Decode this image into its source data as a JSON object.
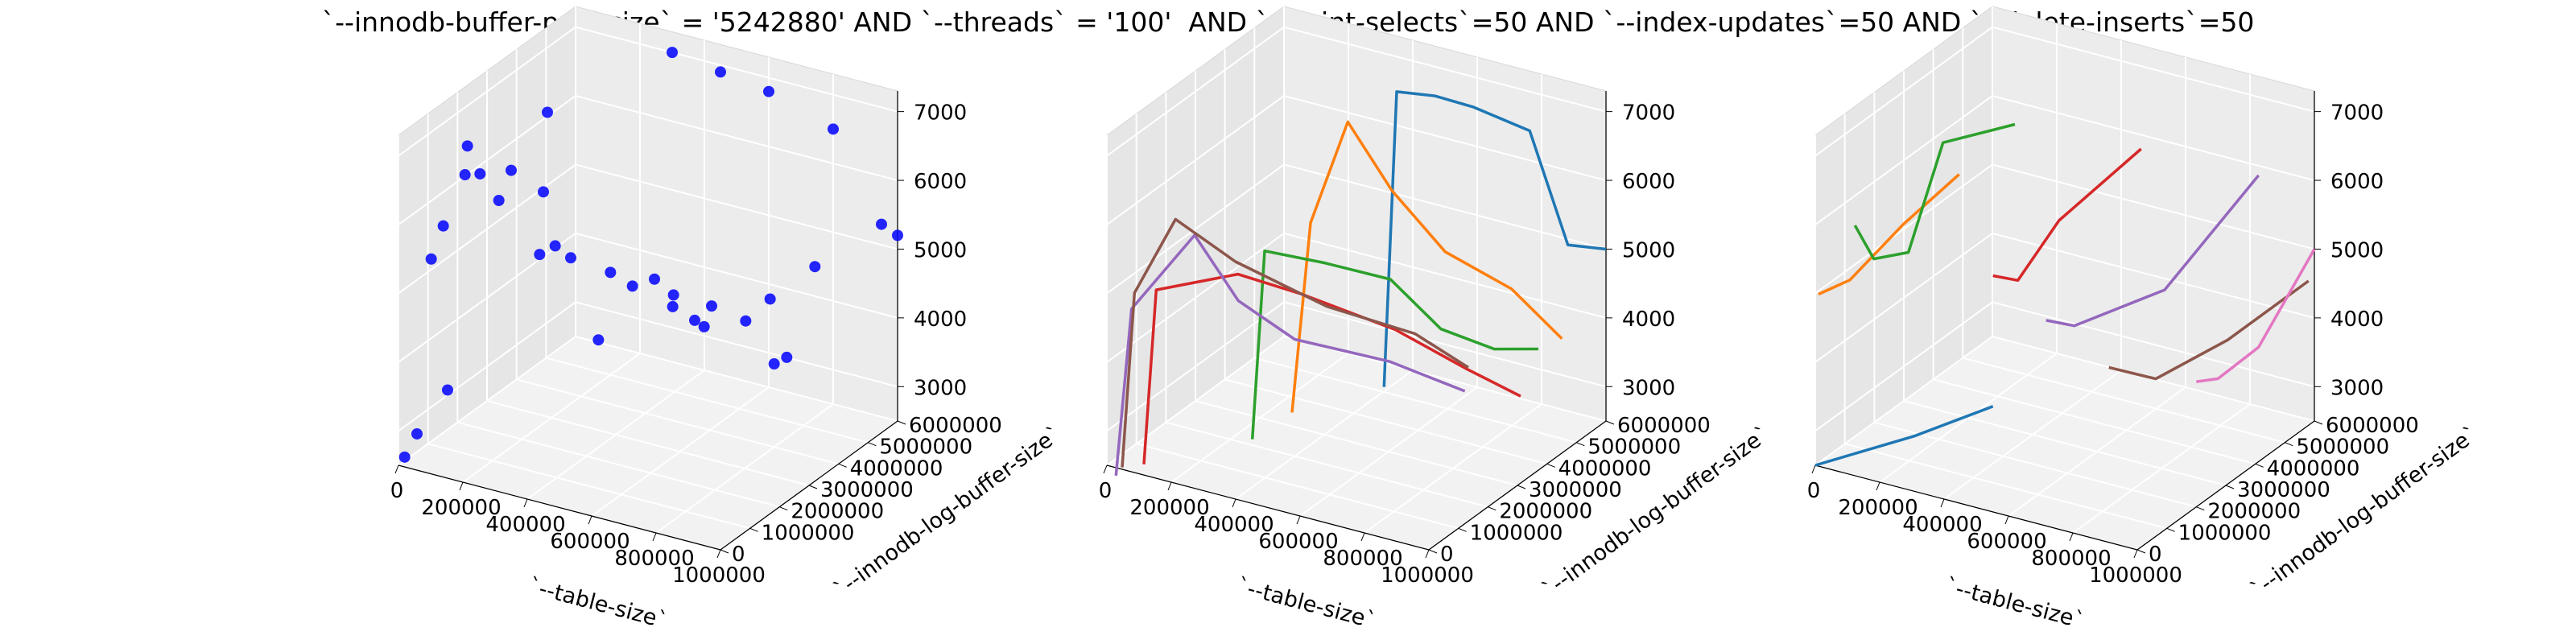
{
  "chart_data": {
    "type": "scatter3d",
    "title": "`--innodb-buffer-pool-size` = '5242880' AND `--threads` = '100'  AND `--point-selects`=50 AND `--index-updates`=50 AND `--delete-inserts`=50",
    "axes": {
      "xlabel": "`--table-size`",
      "ylabel": "`--innodb-log-buffer-size`",
      "zlabel": "",
      "xlim": [
        0,
        1000000
      ],
      "ylim": [
        0,
        6000000
      ],
      "zlim": [
        2500,
        7300
      ],
      "xticks": [
        "0",
        "200000",
        "400000",
        "600000",
        "800000",
        "1000000"
      ],
      "yticks": [
        "0",
        "1000000",
        "2000000",
        "3000000",
        "4000000",
        "5000000",
        "6000000"
      ],
      "zticks": [
        "3000",
        "4000",
        "5000",
        "6000",
        "7000"
      ],
      "grid": true,
      "pane_color": "#ebebeb"
    },
    "panels": [
      {
        "kind": "scatter",
        "color": "#0000ff",
        "points": [
          [
            10000,
            100000,
            2600
          ],
          [
            30000,
            300000,
            2900
          ],
          [
            70000,
            900000,
            3400
          ],
          [
            10000,
            1000000,
            5200
          ],
          [
            20000,
            1300000,
            5600
          ],
          [
            60000,
            1600000,
            6300
          ],
          [
            40000,
            1900000,
            6600
          ],
          [
            70000,
            2000000,
            6200
          ],
          [
            110000,
            2200000,
            5800
          ],
          [
            130000,
            2400000,
            6200
          ],
          [
            200000,
            2600000,
            5000
          ],
          [
            230000,
            2800000,
            5100
          ],
          [
            260000,
            3000000,
            4900
          ],
          [
            160000,
            3300000,
            6800
          ],
          [
            120000,
            3600000,
            5500
          ],
          [
            300000,
            3500000,
            3600
          ],
          [
            310000,
            3800000,
            4500
          ],
          [
            360000,
            4000000,
            4300
          ],
          [
            410000,
            4200000,
            4400
          ],
          [
            460000,
            4300000,
            4200
          ],
          [
            560000,
            4500000,
            4100
          ],
          [
            430000,
            4600000,
            3900
          ],
          [
            480000,
            4800000,
            3700
          ],
          [
            500000,
            4900000,
            3600
          ],
          [
            620000,
            5000000,
            3800
          ],
          [
            690000,
            5200000,
            3200
          ],
          [
            720000,
            5300000,
            3300
          ],
          [
            650000,
            5500000,
            4000
          ],
          [
            780000,
            5600000,
            4600
          ],
          [
            300000,
            6000000,
            7000
          ],
          [
            450000,
            6000000,
            6900
          ],
          [
            600000,
            6000000,
            6800
          ],
          [
            800000,
            6000000,
            6500
          ],
          [
            950000,
            6000000,
            5300
          ],
          [
            1000000,
            6000000,
            5200
          ]
        ]
      },
      {
        "kind": "lines",
        "series": [
          {
            "color": "#1f77b4",
            "points": [
              [
                430000,
                4700000,
                2700
              ],
              [
                460000,
                4800000,
                7000
              ],
              [
                560000,
                5000000,
                7000
              ],
              [
                660000,
                5200000,
                6900
              ],
              [
                800000,
                5600000,
                6600
              ],
              [
                900000,
                5800000,
                5000
              ],
              [
                1000000,
                6000000,
                5000
              ]
            ]
          },
          {
            "color": "#ff7f0e",
            "points": [
              [
                300000,
                3000000,
                2700
              ],
              [
                330000,
                3300000,
                5400
              ],
              [
                400000,
                3800000,
                6800
              ],
              [
                500000,
                4200000,
                5800
              ],
              [
                620000,
                4700000,
                4900
              ],
              [
                780000,
                5200000,
                4400
              ],
              [
                900000,
                5600000,
                3700
              ]
            ]
          },
          {
            "color": "#2ca02c",
            "points": [
              [
                250000,
                2200000,
                2500
              ],
              [
                270000,
                2400000,
                5200
              ],
              [
                400000,
                3000000,
                5000
              ],
              [
                560000,
                3500000,
                4800
              ],
              [
                680000,
                3900000,
                4100
              ],
              [
                800000,
                4400000,
                3800
              ],
              [
                900000,
                4800000,
                3800
              ]
            ]
          },
          {
            "color": "#d62728",
            "points": [
              [
                60000,
                600000,
                2400
              ],
              [
                80000,
                800000,
                4900
              ],
              [
                260000,
                1600000,
                5100
              ],
              [
                400000,
                2200000,
                4800
              ],
              [
                620000,
                3000000,
                4300
              ],
              [
                780000,
                3700000,
                3700
              ],
              [
                900000,
                4200000,
                3300
              ]
            ]
          },
          {
            "color": "#9467bd",
            "points": [
              [
                10000,
                200000,
                2300
              ],
              [
                40000,
                400000,
                4700
              ],
              [
                190000,
                900000,
                5800
              ],
              [
                280000,
                1400000,
                4800
              ],
              [
                400000,
                2000000,
                4200
              ],
              [
                620000,
                2800000,
                3900
              ],
              [
                800000,
                3400000,
                3500
              ]
            ]
          },
          {
            "color": "#8c564b",
            "points": [
              [
                20000,
                300000,
                2400
              ],
              [
                40000,
                500000,
                4900
              ],
              [
                140000,
                800000,
                6000
              ],
              [
                280000,
                1300000,
                5400
              ],
              [
                500000,
                2000000,
                4800
              ],
              [
                700000,
                2800000,
                4400
              ],
              [
                820000,
                3300000,
                3900
              ]
            ]
          }
        ]
      },
      {
        "kind": "lines",
        "series": [
          {
            "color": "#1f77b4",
            "points": [
              [
                0,
                0,
                2500
              ],
              [
                200000,
                1200000,
                2800
              ],
              [
                350000,
                2200000,
                3100
              ]
            ]
          },
          {
            "color": "#ff7f0e",
            "points": [
              [
                10000,
                0,
                5000
              ],
              [
                80000,
                300000,
                5200
              ],
              [
                200000,
                800000,
                6000
              ],
              [
                300000,
                1600000,
                6600
              ]
            ]
          },
          {
            "color": "#2ca02c",
            "points": [
              [
                50000,
                800000,
                5800
              ],
              [
                90000,
                1000000,
                5300
              ],
              [
                170000,
                1300000,
                5400
              ],
              [
                250000,
                1600000,
                7000
              ],
              [
                400000,
                2400000,
                7200
              ]
            ]
          },
          {
            "color": "#d62728",
            "points": [
              [
                350000,
                2200000,
                5000
              ],
              [
                400000,
                2500000,
                4900
              ],
              [
                500000,
                2800000,
                5800
              ],
              [
                700000,
                3400000,
                6900
              ]
            ]
          },
          {
            "color": "#9467bd",
            "points": [
              [
                460000,
                2800000,
                4300
              ],
              [
                520000,
                3100000,
                4200
              ],
              [
                700000,
                4200000,
                4600
              ],
              [
                900000,
                5200000,
                6200
              ]
            ]
          },
          {
            "color": "#8c564b",
            "points": [
              [
                600000,
                3400000,
                3600
              ],
              [
                700000,
                3900000,
                3400
              ],
              [
                850000,
                4700000,
                3900
              ],
              [
                1000000,
                5800000,
                4600
              ]
            ]
          },
          {
            "color": "#e377c2",
            "points": [
              [
                780000,
                4400000,
                3300
              ],
              [
                820000,
                4700000,
                3300
              ],
              [
                900000,
                5200000,
                3700
              ],
              [
                1000000,
                6000000,
                5000
              ]
            ]
          }
        ]
      }
    ]
  }
}
